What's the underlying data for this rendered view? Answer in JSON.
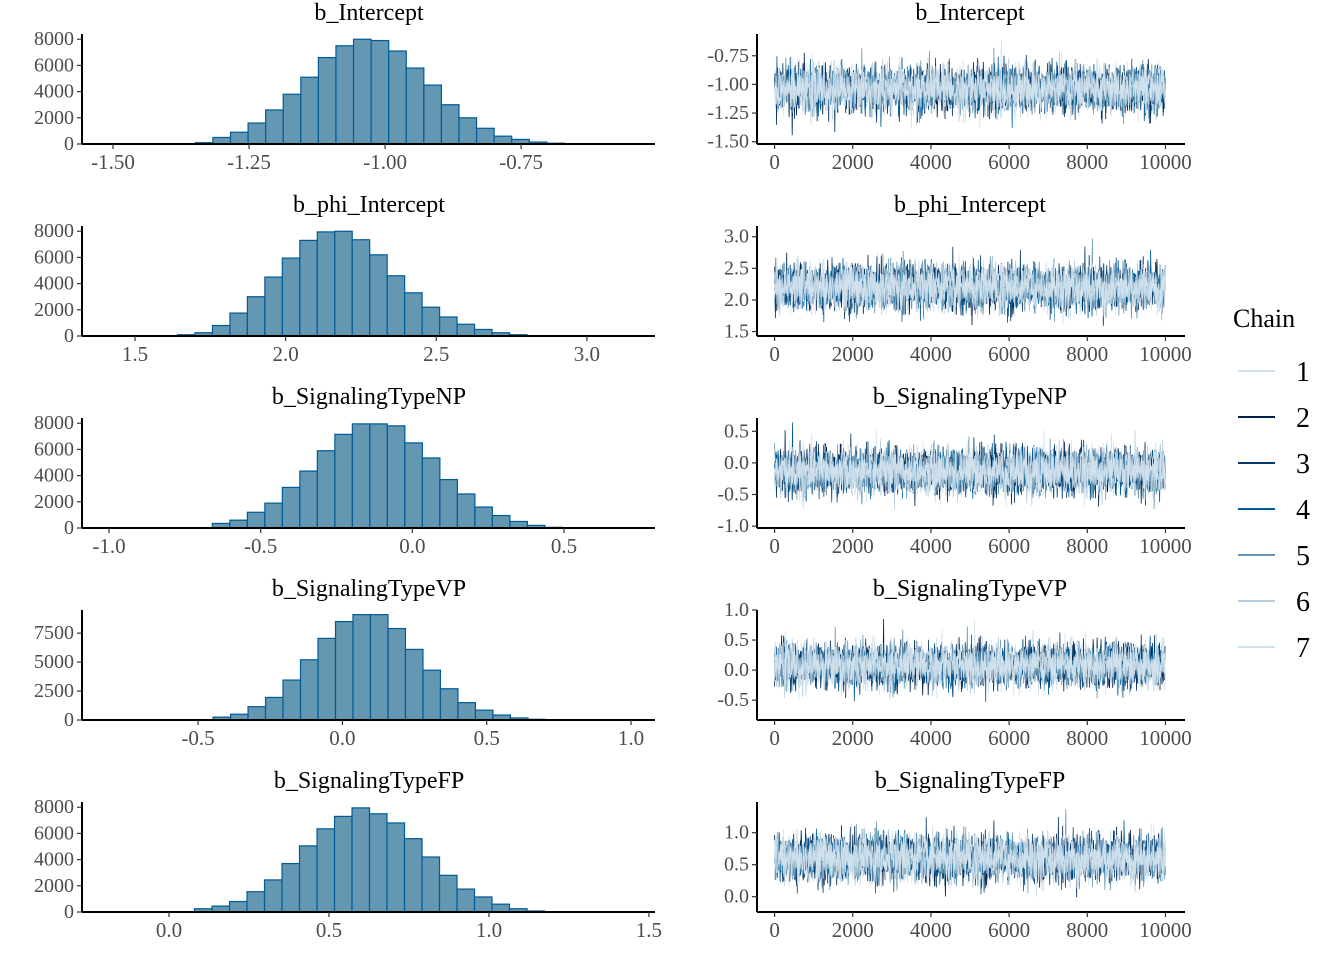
{
  "chart_data": [
    {
      "type": "bar",
      "title": "b_Intercept",
      "xlim": [
        -1.557,
        -0.504
      ],
      "ylim": [
        0,
        8400
      ],
      "xticks": [
        -1.5,
        -1.25,
        -1.0,
        -0.75
      ],
      "xtick_labels": [
        "-1.50",
        "-1.25",
        "-1.00",
        "-0.75"
      ],
      "yticks": [
        0,
        2000,
        4000,
        6000,
        8000
      ],
      "ytick_labels": [
        "0",
        "2000",
        "4000",
        "6000",
        "8000"
      ],
      "bin_start": -1.381,
      "bin_width": 0.0323,
      "counts": [
        30,
        100,
        500,
        900,
        1600,
        2600,
        3800,
        5100,
        6600,
        7500,
        8000,
        7900,
        7100,
        5800,
        4500,
        3000,
        2000,
        1200,
        600,
        350,
        150,
        60
      ]
    },
    {
      "type": "line",
      "title": "b_Intercept",
      "xlim": [
        -450,
        10500
      ],
      "ylim": [
        -1.52,
        -0.56
      ],
      "xticks": [
        0,
        2000,
        4000,
        6000,
        8000,
        10000
      ],
      "xtick_labels": [
        "0",
        "2000",
        "4000",
        "6000",
        "8000",
        "10000"
      ],
      "yticks": [
        -0.75,
        -1.0,
        -1.25,
        -1.5
      ],
      "ytick_labels": [
        "-0.75",
        "-1.00",
        "-1.25",
        "-1.50"
      ],
      "trace_center": -1.04,
      "trace_spread": 0.1
    },
    {
      "type": "bar",
      "title": "b_phi_Intercept",
      "xlim": [
        1.324,
        3.226
      ],
      "ylim": [
        0,
        8400
      ],
      "xticks": [
        1.5,
        2.0,
        2.5,
        3.0
      ],
      "xtick_labels": [
        "1.5",
        "2.0",
        "2.5",
        "3.0"
      ],
      "yticks": [
        0,
        2000,
        4000,
        6000,
        8000
      ],
      "ytick_labels": [
        "0",
        "2000",
        "4000",
        "6000",
        "8000"
      ],
      "bin_start": 1.583,
      "bin_width": 0.058,
      "counts": [
        20,
        100,
        250,
        800,
        1750,
        3000,
        4500,
        5950,
        7300,
        7950,
        8000,
        7350,
        6200,
        4600,
        3300,
        2200,
        1450,
        900,
        500,
        250,
        100,
        30
      ]
    },
    {
      "type": "line",
      "title": "b_phi_Intercept",
      "xlim": [
        -450,
        10500
      ],
      "ylim": [
        1.43,
        3.17
      ],
      "xticks": [
        0,
        2000,
        4000,
        6000,
        8000,
        10000
      ],
      "xtick_labels": [
        "0",
        "2000",
        "4000",
        "6000",
        "8000",
        "10000"
      ],
      "yticks": [
        3.0,
        2.5,
        2.0,
        1.5
      ],
      "ytick_labels": [
        "3.0",
        "2.5",
        "2.0",
        "1.5"
      ],
      "trace_center": 2.2,
      "trace_spread": 0.18
    },
    {
      "type": "bar",
      "title": "b_SignalingTypeNP",
      "xlim": [
        -1.089,
        0.8
      ],
      "ylim": [
        0,
        8400
      ],
      "xticks": [
        -1.0,
        -0.5,
        0.0,
        0.5
      ],
      "xtick_labels": [
        "-1.0",
        "-0.5",
        "0.0",
        "0.5"
      ],
      "yticks": [
        0,
        2000,
        4000,
        6000,
        8000
      ],
      "ytick_labels": [
        "0",
        "2000",
        "4000",
        "6000",
        "8000"
      ],
      "bin_start": -0.717,
      "bin_width": 0.0577,
      "counts": [
        20,
        350,
        600,
        1200,
        1900,
        3100,
        4350,
        5900,
        7150,
        7950,
        7950,
        7800,
        6500,
        5350,
        3700,
        2600,
        1600,
        950,
        500,
        200,
        50
      ]
    },
    {
      "type": "line",
      "title": "b_SignalingTypeNP",
      "xlim": [
        -450,
        10500
      ],
      "ylim": [
        -1.03,
        0.71
      ],
      "xticks": [
        0,
        2000,
        4000,
        6000,
        8000,
        10000
      ],
      "xtick_labels": [
        "0",
        "2000",
        "4000",
        "6000",
        "8000",
        "10000"
      ],
      "yticks": [
        0.5,
        0.0,
        -0.5,
        -1.0
      ],
      "ytick_labels": [
        "0.5",
        "0.0",
        "-0.5",
        "-1.0"
      ],
      "trace_center": -0.13,
      "trace_spread": 0.18
    },
    {
      "type": "bar",
      "title": "b_SignalingTypeVP",
      "xlim": [
        -0.902,
        1.083
      ],
      "ylim": [
        0,
        9500
      ],
      "xticks": [
        -0.5,
        0.0,
        0.5,
        1.0
      ],
      "xtick_labels": [
        "-0.5",
        "0.0",
        "0.5",
        "1.0"
      ],
      "yticks": [
        0,
        2500,
        5000,
        7500
      ],
      "ytick_labels": [
        "0",
        "2500",
        "5000",
        "7500"
      ],
      "bin_start": -0.448,
      "bin_width": 0.0606,
      "counts": [
        250,
        500,
        1150,
        1950,
        3450,
        5200,
        7050,
        8500,
        9100,
        9100,
        7900,
        6100,
        4300,
        2700,
        1500,
        850,
        430,
        180,
        60
      ]
    },
    {
      "type": "line",
      "title": "b_SignalingTypeVP",
      "xlim": [
        -450,
        10500
      ],
      "ylim": [
        -0.83,
        1.0
      ],
      "xticks": [
        0,
        2000,
        4000,
        6000,
        8000,
        10000
      ],
      "xtick_labels": [
        "0",
        "2000",
        "4000",
        "6000",
        "8000",
        "10000"
      ],
      "yticks": [
        1.0,
        0.5,
        0.0,
        -0.5
      ],
      "ytick_labels": [
        "1.0",
        "0.5",
        "0.0",
        "-0.5"
      ],
      "trace_center": 0.08,
      "trace_spread": 0.18
    },
    {
      "type": "bar",
      "title": "b_SignalingTypeFP",
      "xlim": [
        -0.272,
        1.519
      ],
      "ylim": [
        0,
        8400
      ],
      "xticks": [
        0.0,
        0.5,
        1.0,
        1.5
      ],
      "xtick_labels": [
        "0.0",
        "0.5",
        "1.0",
        "1.5"
      ],
      "yticks": [
        0,
        2000,
        4000,
        6000,
        8000
      ],
      "ytick_labels": [
        "0",
        "2000",
        "4000",
        "6000",
        "8000"
      ],
      "bin_start": 0.025,
      "bin_width": 0.0547,
      "counts": [
        30,
        250,
        450,
        800,
        1550,
        2450,
        3700,
        5050,
        6350,
        7300,
        7950,
        7500,
        6800,
        5600,
        4200,
        2800,
        1750,
        1150,
        600,
        250,
        80
      ]
    },
    {
      "type": "line",
      "title": "b_SignalingTypeFP",
      "xlim": [
        -450,
        10500
      ],
      "ylim": [
        -0.24,
        1.48
      ],
      "xticks": [
        0,
        2000,
        4000,
        6000,
        8000,
        10000
      ],
      "xtick_labels": [
        "0",
        "2000",
        "4000",
        "6000",
        "8000",
        "10000"
      ],
      "yticks": [
        1.0,
        0.5,
        0.0
      ],
      "ytick_labels": [
        "1.0",
        "0.5",
        "0.0"
      ],
      "trace_center": 0.6,
      "trace_spread": 0.18
    }
  ],
  "hist_fill": "#6497b1",
  "hist_outline": "#005b96",
  "legend": {
    "title": "Chain",
    "items": [
      {
        "label": "1",
        "color": "#d1e1ec"
      },
      {
        "label": "2",
        "color": "#011f4b"
      },
      {
        "label": "3",
        "color": "#03396c"
      },
      {
        "label": "4",
        "color": "#005b96"
      },
      {
        "label": "5",
        "color": "#6497b1"
      },
      {
        "label": "6",
        "color": "#b3cde0"
      },
      {
        "label": "7",
        "color": "#d1e1ec"
      }
    ]
  }
}
